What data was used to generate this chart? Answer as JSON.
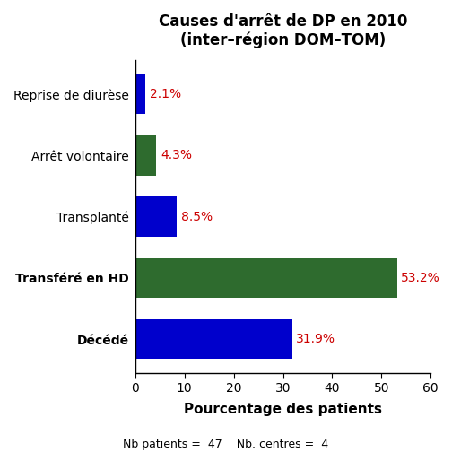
{
  "title_line1": "Causes d'arrêt de DP en 2010",
  "title_line2": "(inter–région DOM–TOM)",
  "categories": [
    "Reprise de diurèse",
    "Arrêt volontaire",
    "Transplanté",
    "Transféré en HD",
    "Décédé"
  ],
  "values": [
    2.1,
    4.3,
    8.5,
    53.2,
    31.9
  ],
  "colors": [
    "#0000CC",
    "#2E6B2E",
    "#0000CC",
    "#2E6B2E",
    "#0000CC"
  ],
  "label_color": "#CC0000",
  "xlabel": "Pourcentage des patients",
  "footnote": "Nb patients =  47    Nb. centres =  4",
  "xlim": [
    0,
    60
  ],
  "xticks": [
    0,
    10,
    20,
    30,
    40,
    50,
    60
  ],
  "bar_height": 0.65,
  "background_color": "#ffffff",
  "title_fontsize": 12,
  "label_fontsize": 10,
  "ytick_fontsize": 10,
  "xtick_fontsize": 10,
  "xlabel_fontsize": 11,
  "footnote_fontsize": 9
}
